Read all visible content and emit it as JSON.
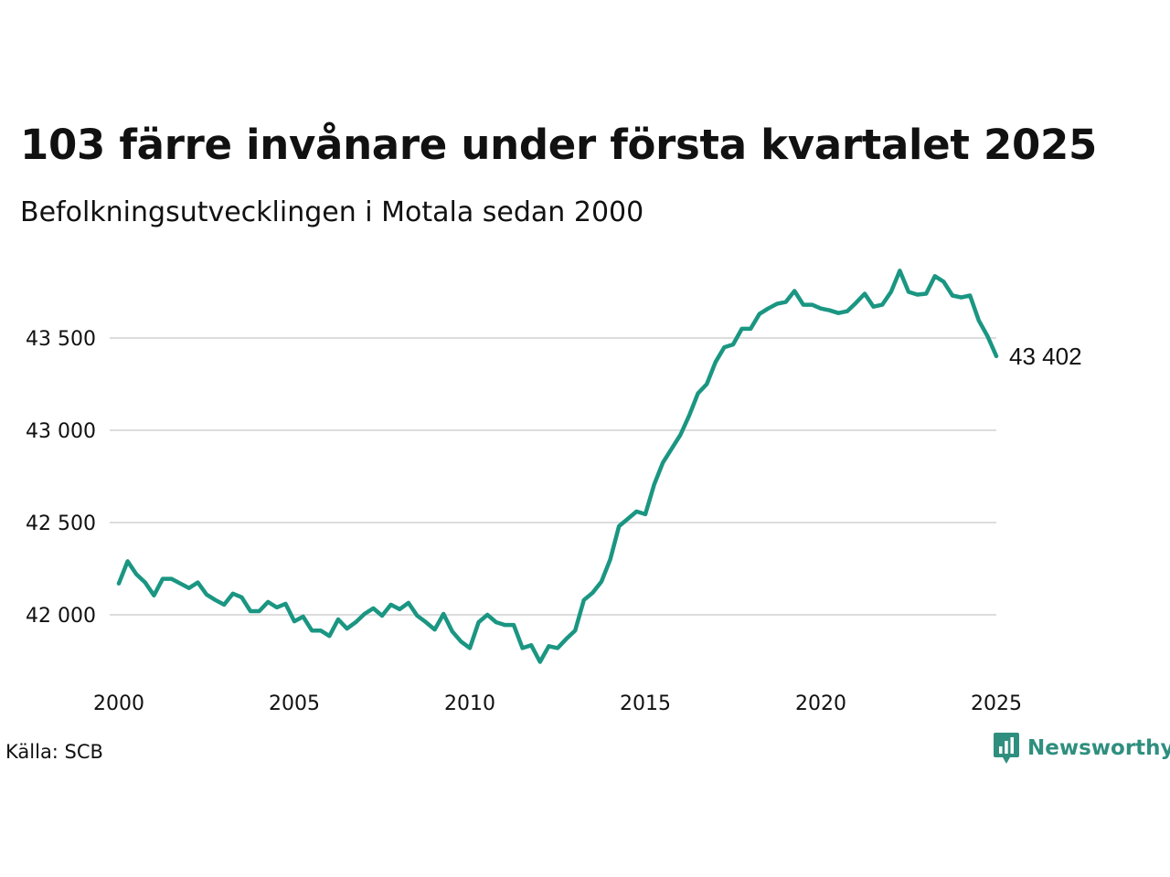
{
  "title": "103 färre invånare under första kvartalet 2025",
  "subtitle": "Befolkningsutvecklingen i Motala sedan 2000",
  "source": "Källa: SCB",
  "brand": {
    "name": "Newsworthy",
    "icon": "newsworthy-logo-icon",
    "color": "#2f8f7f"
  },
  "colors": {
    "line": "#1a9682",
    "grid": "#dddddd"
  },
  "chart_data": {
    "type": "line",
    "title": "103 färre invånare under första kvartalet 2025",
    "subtitle": "Befolkningsutvecklingen i Motala sedan 2000",
    "xlabel": "",
    "ylabel": "",
    "xlim": [
      2000,
      2025.25
    ],
    "ylim": [
      41700,
      43900
    ],
    "x_ticks": [
      2000,
      2005,
      2010,
      2015,
      2020,
      2025
    ],
    "x_tick_labels": [
      "2000",
      "2005",
      "2010",
      "2015",
      "2020",
      "2025"
    ],
    "y_ticks": [
      42000,
      42500,
      43000,
      43500
    ],
    "y_tick_labels": [
      "42 000",
      "42 500",
      "43 000",
      "43 500"
    ],
    "grid": "horizontal",
    "legend": "none",
    "end_label": "43 402",
    "series": [
      {
        "color": "#1a9682",
        "x": [
          2000.0,
          2000.25,
          2000.5,
          2000.75,
          2001.0,
          2001.25,
          2001.5,
          2001.75,
          2002.0,
          2002.25,
          2002.5,
          2002.75,
          2003.0,
          2003.25,
          2003.5,
          2003.75,
          2004.0,
          2004.25,
          2004.5,
          2004.75,
          2005.0,
          2005.25,
          2005.5,
          2005.75,
          2006.0,
          2006.25,
          2006.5,
          2006.75,
          2007.0,
          2007.25,
          2007.5,
          2007.75,
          2008.0,
          2008.25,
          2008.5,
          2008.75,
          2009.0,
          2009.25,
          2009.5,
          2009.75,
          2010.0,
          2010.25,
          2010.5,
          2010.75,
          2011.0,
          2011.25,
          2011.5,
          2011.75,
          2012.0,
          2012.25,
          2012.5,
          2012.75,
          2013.0,
          2013.25,
          2013.5,
          2013.75,
          2014.0,
          2014.25,
          2014.5,
          2014.75,
          2015.0,
          2015.25,
          2015.5,
          2015.75,
          2016.0,
          2016.25,
          2016.5,
          2016.75,
          2017.0,
          2017.25,
          2017.5,
          2017.75,
          2018.0,
          2018.25,
          2018.5,
          2018.75,
          2019.0,
          2019.25,
          2019.5,
          2019.75,
          2020.0,
          2020.25,
          2020.5,
          2020.75,
          2021.0,
          2021.25,
          2021.5,
          2021.75,
          2022.0,
          2022.25,
          2022.5,
          2022.75,
          2023.0,
          2023.25,
          2023.5,
          2023.75,
          2024.0,
          2024.25,
          2024.5,
          2024.75,
          2025.0
        ],
        "y": [
          42170,
          42290,
          42220,
          42175,
          42105,
          42195,
          42195,
          42170,
          42145,
          42175,
          42110,
          42080,
          42055,
          42115,
          42095,
          42020,
          42020,
          42070,
          42040,
          42060,
          41965,
          41990,
          41915,
          41915,
          41885,
          41975,
          41925,
          41960,
          42005,
          42035,
          41995,
          42055,
          42030,
          42065,
          41995,
          41960,
          41920,
          42005,
          41910,
          41855,
          41820,
          41960,
          42000,
          41960,
          41945,
          41945,
          41820,
          41835,
          41745,
          41830,
          41820,
          41870,
          41915,
          42080,
          42120,
          42180,
          42300,
          42480,
          42520,
          42560,
          42545,
          42705,
          42825,
          42900,
          42975,
          43080,
          43200,
          43250,
          43370,
          43450,
          43465,
          43550,
          43550,
          43630,
          43660,
          43685,
          43695,
          43755,
          43680,
          43680,
          43660,
          43650,
          43635,
          43645,
          43690,
          43740,
          43670,
          43680,
          43750,
          43865,
          43750,
          43735,
          43740,
          43835,
          43805,
          43730,
          43720,
          43730,
          43595,
          43510,
          43402
        ]
      }
    ]
  }
}
